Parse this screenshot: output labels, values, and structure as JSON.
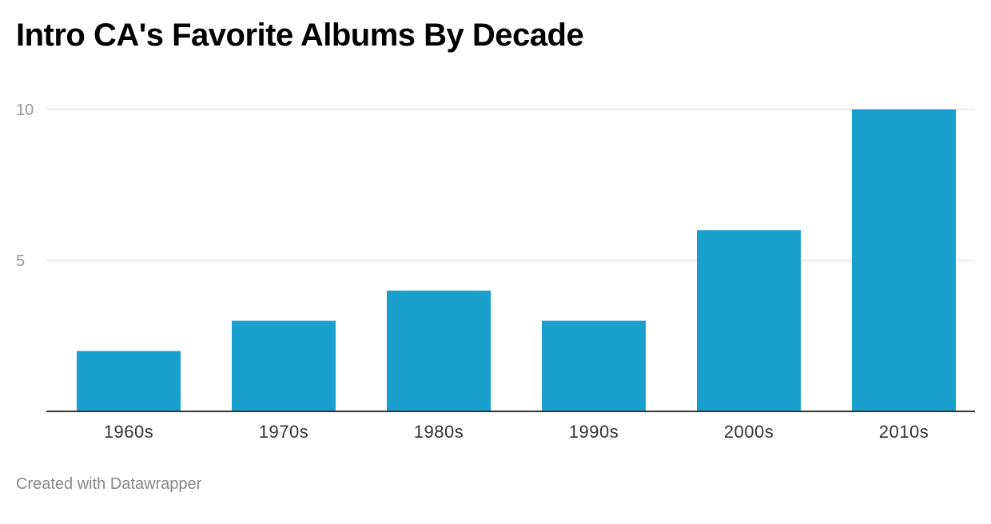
{
  "chart_data": {
    "type": "bar",
    "title": "Intro CA's Favorite Albums By Decade",
    "categories": [
      "1960s",
      "1970s",
      "1980s",
      "1990s",
      "2000s",
      "2010s"
    ],
    "values": [
      2,
      3,
      4,
      3,
      6,
      10
    ],
    "xlabel": "",
    "ylabel": "",
    "ylim": [
      0,
      10
    ],
    "y_ticks": [
      5,
      10
    ],
    "grid": true,
    "bar_color": "#1aa0cf",
    "gridline_color": "#e3e3e3",
    "axis_color": "#333333",
    "tick_label_color": "#999999",
    "category_label_color": "#333333"
  },
  "footer": {
    "credit": "Created with Datawrapper",
    "color": "#888888"
  }
}
